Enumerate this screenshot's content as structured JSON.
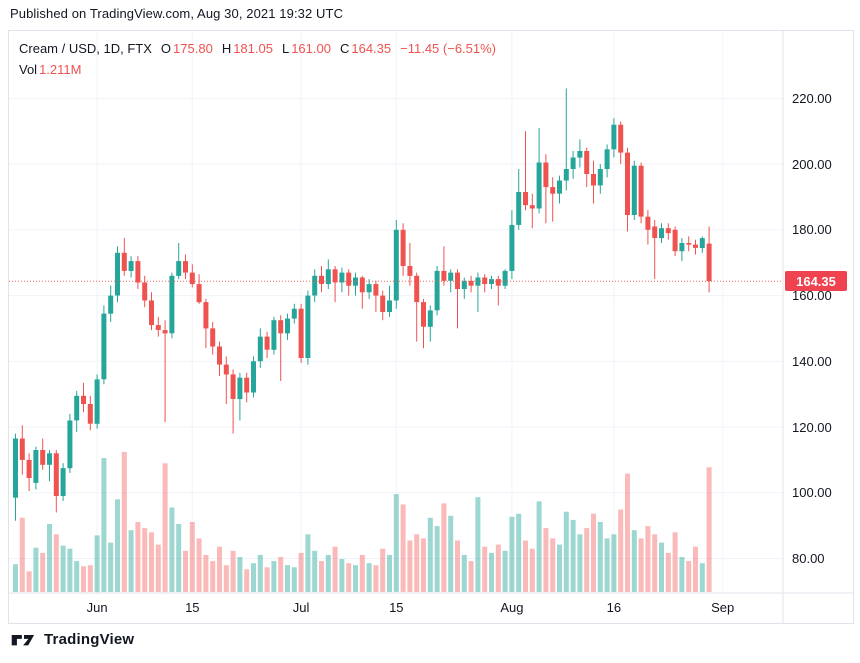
{
  "published_bar": {
    "text": "Published on TradingView.com, Aug 30, 2021 19:32 UTC"
  },
  "legend": {
    "symbol": "Cream / USD, 1D, FTX",
    "o_label": "O",
    "o_value": "175.80",
    "h_label": "H",
    "h_value": "181.05",
    "l_label": "L",
    "l_value": "161.00",
    "c_label": "C",
    "c_value": "164.35",
    "change": "−11.45 (−6.51%)",
    "vol_label": "Vol",
    "vol_value": "1.211M"
  },
  "price_axis": {
    "last_price_badge": "164.35",
    "ticks": [
      {
        "value": 220,
        "label": "220.00"
      },
      {
        "value": 200,
        "label": "200.00"
      },
      {
        "value": 180,
        "label": "180.00"
      },
      {
        "value": 160,
        "label": "160.00"
      },
      {
        "value": 140,
        "label": "140.00"
      },
      {
        "value": 120,
        "label": "120.00"
      },
      {
        "value": 100,
        "label": "100.00"
      },
      {
        "value": 80,
        "label": "80.00"
      }
    ]
  },
  "footer": {
    "brand": "TradingView"
  },
  "colors": {
    "up": "#26a69a",
    "down": "#ef5350",
    "vol_up": "rgba(38,166,154,0.45)",
    "vol_down": "rgba(239,83,80,0.40)",
    "grid": "#f0f3fa",
    "border": "#e0e3eb",
    "text": "#131722",
    "badge_bg": "#ef4350",
    "last_price_line": "#ef5350"
  },
  "chart_data": {
    "type": "candlestick_with_volume",
    "title": "Cream / USD, 1D, FTX",
    "exchange": "FTX",
    "interval": "1D",
    "x_start": "2021-05-20",
    "x_step_days": 1,
    "legend_ohlc": {
      "open": 175.8,
      "high": 181.05,
      "low": 161.0,
      "close": 164.35,
      "change": -11.45,
      "change_pct": -6.51,
      "volume": "1.211M"
    },
    "last_price": 164.35,
    "y_axis": {
      "ticks": [
        80,
        100,
        120,
        140,
        160,
        180,
        200,
        220
      ],
      "visible_range": [
        69.5,
        240.5
      ],
      "grid": true
    },
    "time_ticks": [
      {
        "label": "Jun",
        "index": 12
      },
      {
        "label": "15",
        "index": 26
      },
      {
        "label": "Jul",
        "index": 42
      },
      {
        "label": "15",
        "index": 56
      },
      {
        "label": "Aug",
        "index": 73
      },
      {
        "label": "16",
        "index": 88
      },
      {
        "label": "Sep",
        "index": 104
      }
    ],
    "volume_unit": "millions",
    "ohlcv_columns": [
      "open",
      "high",
      "low",
      "close",
      "volume_m"
    ],
    "candles": [
      [
        98.5,
        118,
        91.5,
        116.5,
        0.27
      ],
      [
        116.5,
        120.5,
        105.5,
        110,
        0.72
      ],
      [
        110,
        112,
        100.5,
        104.5,
        0.2
      ],
      [
        103,
        114,
        101,
        113,
        0.43
      ],
      [
        113,
        116.5,
        107,
        108.5,
        0.38
      ],
      [
        108.5,
        113,
        103.5,
        112,
        0.66
      ],
      [
        112,
        113,
        94,
        99,
        0.56
      ],
      [
        99,
        109,
        97.5,
        107.5,
        0.45
      ],
      [
        107.5,
        124,
        106,
        122,
        0.42
      ],
      [
        122,
        131,
        118.5,
        129.5,
        0.3
      ],
      [
        129.5,
        133.5,
        124.5,
        127,
        0.25
      ],
      [
        127,
        129.5,
        119,
        121,
        0.26
      ],
      [
        121,
        136,
        119.5,
        134.5,
        0.55
      ],
      [
        134.5,
        157,
        133,
        154.5,
        1.3
      ],
      [
        154.5,
        163,
        152,
        160,
        0.48
      ],
      [
        160,
        175,
        158,
        173,
        0.9
      ],
      [
        173,
        177.5,
        166,
        167.5,
        1.36
      ],
      [
        167.5,
        172,
        165.5,
        170.5,
        0.6
      ],
      [
        170.5,
        172,
        162,
        164,
        0.68
      ],
      [
        164,
        166,
        156.5,
        158.5,
        0.62
      ],
      [
        158.5,
        161,
        149.5,
        151,
        0.58
      ],
      [
        151,
        153.5,
        147.5,
        149.5,
        0.46
      ],
      [
        149.5,
        152.5,
        121.5,
        148.5,
        1.25
      ],
      [
        148.5,
        167,
        147,
        166,
        0.82
      ],
      [
        166,
        176,
        165,
        170.5,
        0.66
      ],
      [
        170.5,
        172.5,
        165,
        167,
        0.4
      ],
      [
        167,
        169.5,
        162.5,
        163.5,
        0.68
      ],
      [
        163.5,
        166.5,
        157.5,
        158,
        0.52
      ],
      [
        158,
        159,
        144,
        150,
        0.36
      ],
      [
        150,
        152,
        142,
        144.5,
        0.3
      ],
      [
        144.5,
        146,
        135.5,
        139,
        0.44
      ],
      [
        139,
        141.5,
        127,
        136,
        0.26
      ],
      [
        136,
        137.5,
        118,
        128.5,
        0.4
      ],
      [
        128.5,
        136.5,
        122,
        135,
        0.34
      ],
      [
        135,
        136.5,
        127.5,
        130.5,
        0.22
      ],
      [
        130.5,
        141.5,
        129,
        140,
        0.28
      ],
      [
        140,
        150,
        138,
        147.5,
        0.36
      ],
      [
        147.5,
        149,
        141,
        143.5,
        0.24
      ],
      [
        143.5,
        153.5,
        142,
        152.5,
        0.3
      ],
      [
        152.5,
        154,
        134,
        148.5,
        0.34
      ],
      [
        148.5,
        154.5,
        146.5,
        153,
        0.26
      ],
      [
        153,
        157.5,
        151.5,
        156,
        0.24
      ],
      [
        156,
        157.5,
        139.5,
        141,
        0.38
      ],
      [
        141,
        161.5,
        139,
        160,
        0.56
      ],
      [
        160,
        168,
        158,
        166,
        0.4
      ],
      [
        166,
        169,
        161,
        163.5,
        0.3
      ],
      [
        163.5,
        171,
        162,
        168,
        0.36
      ],
      [
        168,
        169,
        158,
        164,
        0.44
      ],
      [
        164,
        168.5,
        161,
        167,
        0.32
      ],
      [
        167,
        168,
        160,
        163,
        0.28
      ],
      [
        163,
        167,
        160,
        165.5,
        0.26
      ],
      [
        165.5,
        166,
        156,
        161,
        0.36
      ],
      [
        161,
        165,
        159,
        163.5,
        0.28
      ],
      [
        163.5,
        164.5,
        155,
        160,
        0.26
      ],
      [
        160,
        161.5,
        152.5,
        155,
        0.42
      ],
      [
        155,
        163,
        153.5,
        158.5,
        0.36
      ],
      [
        158.5,
        183,
        156,
        180,
        0.95
      ],
      [
        180,
        182,
        166,
        169,
        0.85
      ],
      [
        169,
        176,
        163,
        166,
        0.5
      ],
      [
        166,
        167,
        146,
        158,
        0.56
      ],
      [
        158,
        159,
        144,
        150.5,
        0.52
      ],
      [
        150.5,
        157,
        146,
        155.5,
        0.72
      ],
      [
        155.5,
        169,
        154,
        167.5,
        0.64
      ],
      [
        167.5,
        175,
        163,
        164.5,
        0.86
      ],
      [
        164.5,
        168,
        161,
        167,
        0.74
      ],
      [
        167,
        168,
        150,
        162,
        0.5
      ],
      [
        162,
        165.5,
        159,
        164.5,
        0.36
      ],
      [
        164.5,
        166,
        161,
        163,
        0.3
      ],
      [
        163,
        167,
        155,
        165.5,
        0.92
      ],
      [
        165.5,
        166.5,
        161,
        163.5,
        0.44
      ],
      [
        163.5,
        166,
        162,
        165,
        0.38
      ],
      [
        165,
        166,
        157,
        163,
        0.46
      ],
      [
        163,
        168,
        162,
        167.5,
        0.4
      ],
      [
        167.5,
        186,
        165,
        181.5,
        0.73
      ],
      [
        181.5,
        198.5,
        180,
        191.5,
        0.76
      ],
      [
        191.5,
        210,
        186,
        187.5,
        0.5
      ],
      [
        187.5,
        191,
        180.5,
        186.5,
        0.42
      ],
      [
        186.5,
        211,
        185,
        200.5,
        0.88
      ],
      [
        200.5,
        203,
        182,
        193,
        0.62
      ],
      [
        193,
        196,
        182.5,
        191,
        0.52
      ],
      [
        191,
        196.5,
        188,
        195,
        0.46
      ],
      [
        195,
        223,
        192,
        198.5,
        0.78
      ],
      [
        198.5,
        204,
        195.5,
        202,
        0.7
      ],
      [
        202,
        207.5,
        199,
        204,
        0.56
      ],
      [
        204,
        205,
        193,
        197,
        0.62
      ],
      [
        197,
        201,
        188,
        193.5,
        0.76
      ],
      [
        193.5,
        200,
        191,
        198.5,
        0.68
      ],
      [
        198.5,
        206,
        196,
        204.5,
        0.52
      ],
      [
        204.5,
        214,
        202,
        212,
        0.56
      ],
      [
        212,
        213,
        200,
        203.5,
        0.8
      ],
      [
        203.5,
        205,
        179.5,
        184.5,
        1.15
      ],
      [
        184.5,
        201,
        183,
        199.5,
        0.6
      ],
      [
        199.5,
        200.5,
        182,
        184,
        0.52
      ],
      [
        184,
        186,
        175.5,
        180,
        0.64
      ],
      [
        181,
        183,
        165,
        177.5,
        0.56
      ],
      [
        177.5,
        182,
        176,
        180.5,
        0.48
      ],
      [
        180.5,
        182,
        177,
        179,
        0.38
      ],
      [
        180,
        181,
        172,
        173.5,
        0.58
      ],
      [
        173.5,
        177.5,
        170.5,
        176,
        0.34
      ],
      [
        176,
        178,
        173.5,
        175.5,
        0.3
      ],
      [
        175.5,
        177,
        172.5,
        174.5,
        0.44
      ],
      [
        174.5,
        178,
        173,
        177.5,
        0.28
      ],
      [
        175.8,
        181.05,
        161,
        164.35,
        1.211
      ]
    ]
  }
}
